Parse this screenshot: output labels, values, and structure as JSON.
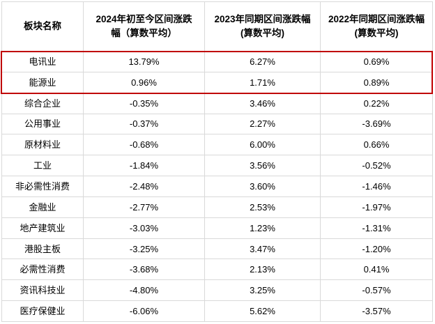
{
  "chart_data": {
    "type": "table",
    "title": "",
    "columns": [
      "板块名称",
      "2024年初至今区间涨跌\n幅（算数平均）",
      "2023年同期区间涨跌幅\n(算数平均)",
      "2022年同期区间涨跌幅\n(算数平均)"
    ],
    "rows": [
      {
        "sector": "电讯业",
        "v2024": "13.79%",
        "v2023": "6.27%",
        "v2022": "0.69%"
      },
      {
        "sector": "能源业",
        "v2024": "0.96%",
        "v2023": "1.71%",
        "v2022": "0.89%"
      },
      {
        "sector": "综合企业",
        "v2024": "-0.35%",
        "v2023": "3.46%",
        "v2022": "0.22%"
      },
      {
        "sector": "公用事业",
        "v2024": "-0.37%",
        "v2023": "2.27%",
        "v2022": "-3.69%"
      },
      {
        "sector": "原材料业",
        "v2024": "-0.68%",
        "v2023": "6.00%",
        "v2022": "0.66%"
      },
      {
        "sector": "工业",
        "v2024": "-1.84%",
        "v2023": "3.56%",
        "v2022": "-0.52%"
      },
      {
        "sector": "非必需性消费",
        "v2024": "-2.48%",
        "v2023": "3.60%",
        "v2022": "-1.46%"
      },
      {
        "sector": "金融业",
        "v2024": "-2.77%",
        "v2023": "2.53%",
        "v2022": "-1.97%"
      },
      {
        "sector": "地产建筑业",
        "v2024": "-3.03%",
        "v2023": "1.23%",
        "v2022": "-1.31%"
      },
      {
        "sector": "港股主板",
        "v2024": "-3.25%",
        "v2023": "3.47%",
        "v2022": "-1.20%"
      },
      {
        "sector": "必需性消费",
        "v2024": "-3.68%",
        "v2023": "2.13%",
        "v2022": "0.41%"
      },
      {
        "sector": "资讯科技业",
        "v2024": "-4.80%",
        "v2023": "3.25%",
        "v2022": "-0.57%"
      },
      {
        "sector": "医疗保健业",
        "v2024": "-6.06%",
        "v2023": "5.62%",
        "v2022": "-3.57%"
      }
    ],
    "highlighted_row_indices": [
      0,
      1
    ],
    "layout": {
      "grid": true,
      "header_rows": 1
    }
  },
  "colors": {
    "highlight_border": "#c00000",
    "grid_line": "#d9d9d9",
    "text": "#000000",
    "background": "#ffffff"
  }
}
